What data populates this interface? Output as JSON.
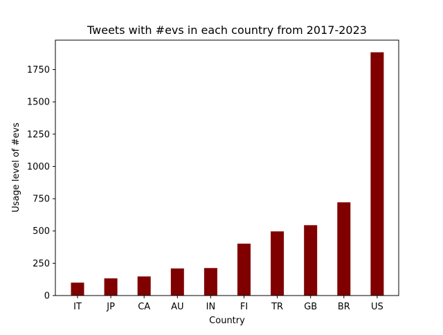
{
  "chart_data": {
    "type": "bar",
    "title": "Tweets with #evs in each country from 2017-2023",
    "xlabel": "Country",
    "ylabel": "Usage level of #evs",
    "categories": [
      "IT",
      "JP",
      "CA",
      "AU",
      "IN",
      "FI",
      "TR",
      "GB",
      "BR",
      "US"
    ],
    "values": [
      100,
      133,
      148,
      210,
      213,
      402,
      497,
      545,
      722,
      1884
    ],
    "ylim": [
      0,
      1978
    ],
    "yticks": [
      0,
      250,
      500,
      750,
      1000,
      1250,
      1500,
      1750
    ],
    "bar_color": "#800000",
    "grid": false,
    "legend": "none"
  }
}
